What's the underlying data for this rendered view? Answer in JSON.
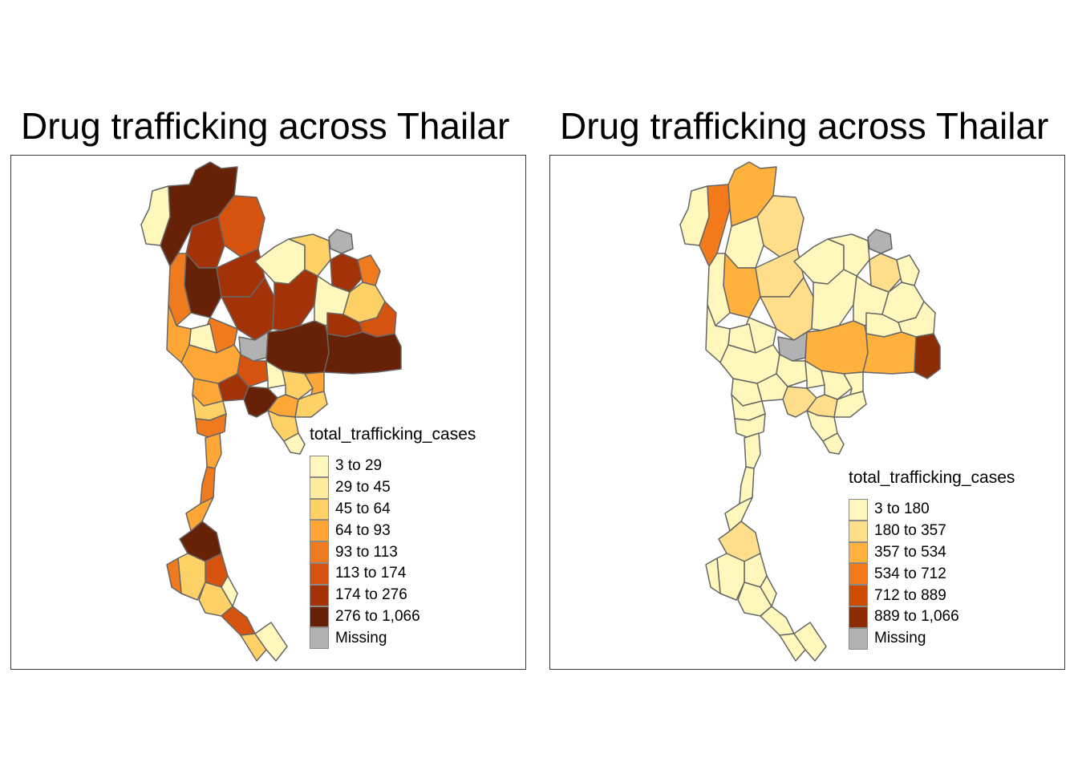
{
  "maps": [
    {
      "title": "Drug trafficking across Thailar",
      "legend": {
        "title": "total_trafficking_cases",
        "classes": [
          {
            "label": "3 to 29",
            "color": "#fff7bc"
          },
          {
            "label": "29 to 45",
            "color": "#feeb9d"
          },
          {
            "label": "45 to 64",
            "color": "#fdd165"
          },
          {
            "label": "64 to 93",
            "color": "#fea736"
          },
          {
            "label": "93 to 113",
            "color": "#f07b1f"
          },
          {
            "label": "113 to 174",
            "color": "#d6520f"
          },
          {
            "label": "174 to 276",
            "color": "#a43207"
          },
          {
            "label": "276 to 1,066",
            "color": "#662106"
          },
          {
            "label": "Missing",
            "color": "#b2b2b2"
          }
        ]
      }
    },
    {
      "title": "Drug trafficking across Thailar",
      "legend": {
        "title": "total_trafficking_cases",
        "classes": [
          {
            "label": "3 to 180",
            "color": "#fff7bc"
          },
          {
            "label": "180 to 357",
            "color": "#fede8a"
          },
          {
            "label": "357 to 534",
            "color": "#feb13d"
          },
          {
            "label": "534 to 712",
            "color": "#f3791b"
          },
          {
            "label": "712 to 889",
            "color": "#cc4c02"
          },
          {
            "label": "889 to 1,066",
            "color": "#8c2d04"
          },
          {
            "label": "Missing",
            "color": "#b2b2b2"
          }
        ]
      }
    }
  ]
}
